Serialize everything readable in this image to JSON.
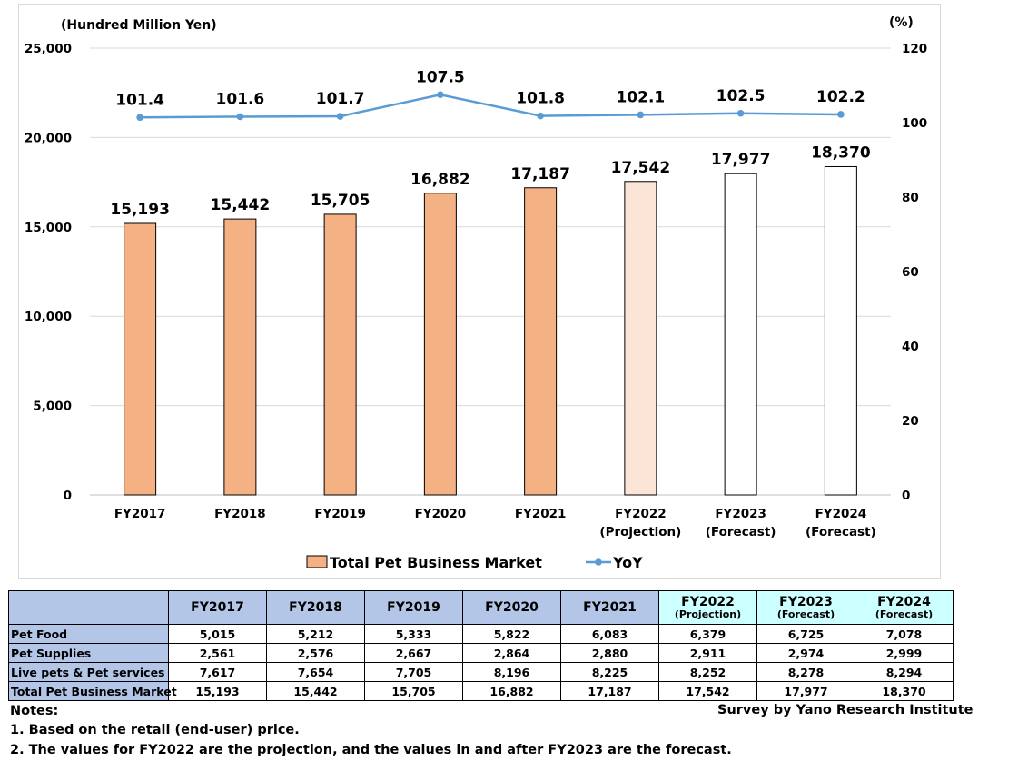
{
  "chart_data": {
    "type": "bar",
    "left_axis_label": "(Hundred  Million Yen)",
    "right_axis_label": "(%)",
    "left_ylim": [
      0,
      25000
    ],
    "left_ticks": [
      "0",
      "5,000",
      "10,000",
      "15,000",
      "20,000",
      "25,000"
    ],
    "right_ylim": [
      0,
      120
    ],
    "right_ticks": [
      "0",
      "20",
      "40",
      "60",
      "80",
      "100",
      "120"
    ],
    "categories": [
      {
        "line1": "FY2017",
        "line2": ""
      },
      {
        "line1": "FY2018",
        "line2": ""
      },
      {
        "line1": "FY2019",
        "line2": ""
      },
      {
        "line1": "FY2020",
        "line2": ""
      },
      {
        "line1": "FY2021",
        "line2": ""
      },
      {
        "line1": "FY2022",
        "line2": "(Projection)"
      },
      {
        "line1": "FY2023",
        "line2": "(Forecast)"
      },
      {
        "line1": "FY2024",
        "line2": "(Forecast)"
      }
    ],
    "series": [
      {
        "name": "Total Pet Business Market",
        "type": "bar",
        "values": [
          15193,
          15442,
          15705,
          16882,
          17187,
          17542,
          17977,
          18370
        ],
        "labels": [
          "15,193",
          "15,442",
          "15,705",
          "16,882",
          "17,187",
          "17,542",
          "17,977",
          "18,370"
        ],
        "fills": [
          "#f4b183",
          "#f4b183",
          "#f4b183",
          "#f4b183",
          "#f4b183",
          "#fbe5d6",
          "#ffffff",
          "#ffffff"
        ]
      },
      {
        "name": "YoY",
        "type": "line",
        "axis": "right",
        "values": [
          101.4,
          101.6,
          101.7,
          107.5,
          101.8,
          102.1,
          102.5,
          102.2
        ],
        "labels": [
          "101.4",
          "101.6",
          "101.7",
          "107.5",
          "101.8",
          "102.1",
          "102.5",
          "102.2"
        ],
        "color": "#5b9bd5"
      }
    ],
    "grid": true,
    "legend": "bottom"
  },
  "table": {
    "headers": [
      {
        "main": "FY2017",
        "sub": ""
      },
      {
        "main": "FY2018",
        "sub": ""
      },
      {
        "main": "FY2019",
        "sub": ""
      },
      {
        "main": "FY2020",
        "sub": ""
      },
      {
        "main": "FY2021",
        "sub": ""
      },
      {
        "main": "FY2022",
        "sub": "(Projection)"
      },
      {
        "main": "FY2023",
        "sub": "(Forecast)"
      },
      {
        "main": "FY2024",
        "sub": "(Forecast)"
      }
    ],
    "rows": [
      {
        "label": "Pet Food",
        "values": [
          "5,015",
          "5,212",
          "5,333",
          "5,822",
          "6,083",
          "6,379",
          "6,725",
          "7,078"
        ]
      },
      {
        "label": "Pet Supplies",
        "values": [
          "2,561",
          "2,576",
          "2,667",
          "2,864",
          "2,880",
          "2,911",
          "2,974",
          "2,999"
        ]
      },
      {
        "label": "Live pets & Pet services",
        "values": [
          "7,617",
          "7,654",
          "7,705",
          "8,196",
          "8,225",
          "8,252",
          "8,278",
          "8,294"
        ]
      },
      {
        "label": "Total Pet Business Market",
        "values": [
          "15,193",
          "15,442",
          "15,705",
          "16,882",
          "17,187",
          "17,542",
          "17,977",
          "18,370"
        ]
      }
    ]
  },
  "notes": {
    "heading": "Notes:",
    "source": "Survey by Yano Research Institute",
    "line1": "1. Based on the retail (end-user) price.",
    "line2": "2. The values for FY2022 are the projection, and the values in and after FY2023 are the forecast."
  }
}
